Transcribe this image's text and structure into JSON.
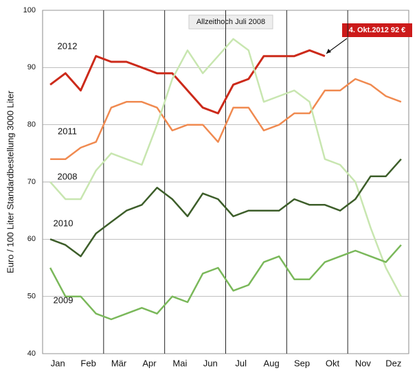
{
  "chart_data": {
    "type": "line",
    "ylabel": "Euro / 100 Liter Standardbestellung 3000 Liter",
    "categories": [
      "Jan",
      null,
      "Feb",
      null,
      "Mär",
      null,
      "Apr",
      null,
      "Mai",
      null,
      "Jun",
      null,
      "Jul",
      null,
      "Aug",
      null,
      "Sep",
      null,
      "Okt",
      null,
      "Nov",
      null,
      "Dez",
      null
    ],
    "series": [
      {
        "name": "2012",
        "color": "#cc2a1a",
        "values": [
          87,
          89,
          86,
          92,
          91,
          91,
          90,
          89,
          89,
          86,
          83,
          82,
          87,
          88,
          92,
          92,
          92,
          93,
          92,
          null,
          null,
          null,
          null,
          null
        ]
      },
      {
        "name": "2011",
        "color": "#f08a50",
        "values": [
          74,
          74,
          76,
          77,
          83,
          84,
          84,
          83,
          79,
          80,
          80,
          77,
          83,
          83,
          79,
          80,
          82,
          82,
          86,
          86,
          88,
          87,
          85,
          84
        ]
      },
      {
        "name": "2008",
        "color": "#c8e6b0",
        "values": [
          70,
          67,
          67,
          72,
          75,
          74,
          73,
          80,
          88,
          93,
          89,
          92,
          95,
          93,
          84,
          85,
          86,
          84,
          74,
          73,
          70,
          62,
          55,
          50
        ]
      },
      {
        "name": "2010",
        "color": "#3d5e2a",
        "values": [
          60,
          59,
          57,
          61,
          63,
          65,
          66,
          69,
          67,
          64,
          68,
          67,
          64,
          65,
          65,
          65,
          67,
          66,
          66,
          65,
          67,
          71,
          71,
          74
        ]
      },
      {
        "name": "2009",
        "color": "#7ab85a",
        "values": [
          55,
          50,
          50,
          47,
          46,
          47,
          48,
          47,
          50,
          49,
          54,
          55,
          51,
          52,
          56,
          57,
          53,
          53,
          56,
          57,
          58,
          57,
          56,
          59
        ]
      }
    ],
    "ylim": [
      40,
      100
    ],
    "yticks": [
      40,
      50,
      60,
      70,
      80,
      90,
      100
    ],
    "grid": true,
    "annotations": [
      "Allzeithoch Juli 2008",
      "4. Okt.2012  92 €"
    ]
  }
}
